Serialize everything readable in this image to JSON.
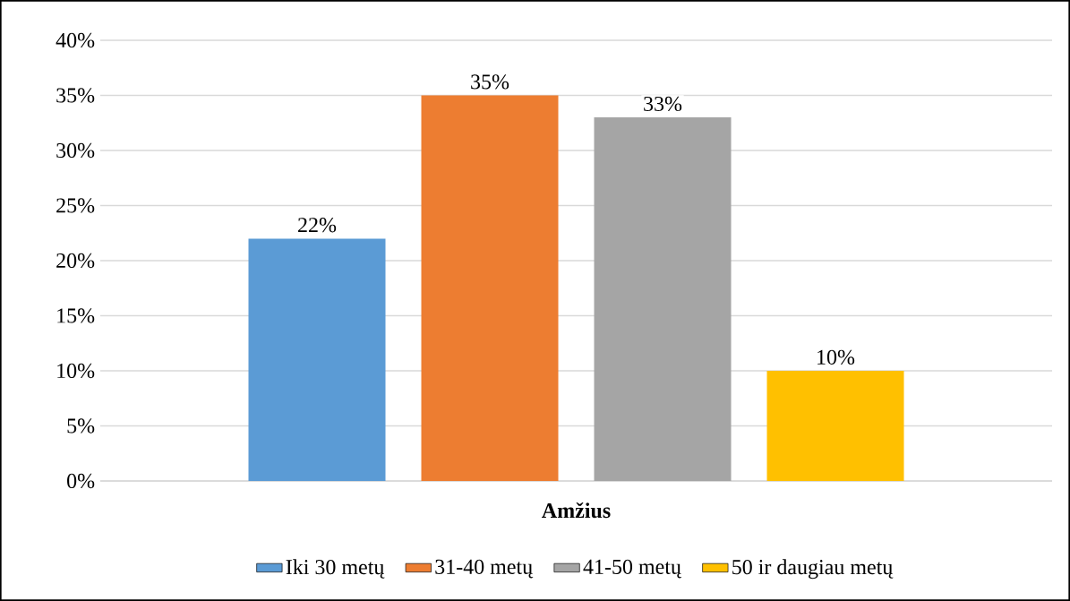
{
  "chart_data": {
    "type": "bar",
    "xlabel": "Amžius",
    "categories": [
      null
    ],
    "series": [
      {
        "name": "Iki 30 metų",
        "color": "#5b9bd5",
        "values": [
          22
        ],
        "value_labels": [
          "22%"
        ]
      },
      {
        "name": "31-40 metų",
        "color": "#ed7d31",
        "values": [
          35
        ],
        "value_labels": [
          "35%"
        ]
      },
      {
        "name": "41-50 metų",
        "color": "#a5a5a5",
        "values": [
          33
        ],
        "value_labels": [
          "33%"
        ]
      },
      {
        "name": "50 ir daugiau metų",
        "color": "#ffc000",
        "values": [
          10
        ],
        "value_labels": [
          "10%"
        ]
      }
    ],
    "ylim": [
      0,
      40
    ],
    "yticks": [
      {
        "value": 0,
        "label": "0%"
      },
      {
        "value": 5,
        "label": "5%"
      },
      {
        "value": 10,
        "label": "10%"
      },
      {
        "value": 15,
        "label": "15%"
      },
      {
        "value": 20,
        "label": "20%"
      },
      {
        "value": 25,
        "label": "25%"
      },
      {
        "value": 30,
        "label": "30%"
      },
      {
        "value": 35,
        "label": "35%"
      },
      {
        "value": 40,
        "label": "40%"
      }
    ],
    "grid": "y",
    "legend": "bottom"
  }
}
